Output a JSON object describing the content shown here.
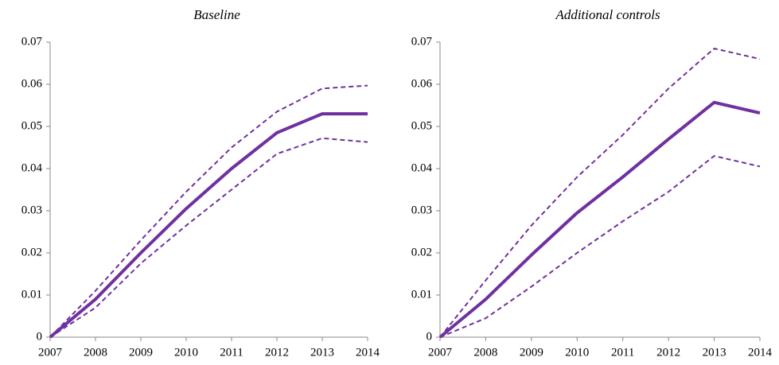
{
  "chart_data": [
    {
      "type": "line",
      "title": "Baseline",
      "x": [
        2007,
        2008,
        2009,
        2010,
        2011,
        2012,
        2013,
        2014
      ],
      "xlim": [
        2007,
        2014
      ],
      "xticks": [
        2007,
        2008,
        2009,
        2010,
        2011,
        2012,
        2013,
        2014
      ],
      "ylim": [
        0,
        0.07
      ],
      "yticks": [
        0,
        0.01,
        0.02,
        0.03,
        0.04,
        0.05,
        0.06,
        0.07
      ],
      "series": [
        {
          "color": "#7030a0",
          "dashed": false,
          "values": [
            0,
            0.009,
            0.02,
            0.0305,
            0.04,
            0.0485,
            0.053,
            0.053
          ]
        },
        {
          "color": "#7030a0",
          "dashed": true,
          "values": [
            0,
            0.011,
            0.023,
            0.0345,
            0.045,
            0.0535,
            0.059,
            0.0597
          ]
        },
        {
          "color": "#7030a0",
          "dashed": true,
          "values": [
            0,
            0.007,
            0.0175,
            0.0265,
            0.035,
            0.0435,
            0.0472,
            0.0463
          ]
        }
      ]
    },
    {
      "type": "line",
      "title": "Additional controls",
      "x": [
        2007,
        2008,
        2009,
        2010,
        2011,
        2012,
        2013,
        2014
      ],
      "xlim": [
        2007,
        2014
      ],
      "xticks": [
        2007,
        2008,
        2009,
        2010,
        2011,
        2012,
        2013,
        2014
      ],
      "ylim": [
        0,
        0.07
      ],
      "yticks": [
        0,
        0.01,
        0.02,
        0.03,
        0.04,
        0.05,
        0.06,
        0.07
      ],
      "series": [
        {
          "color": "#7030a0",
          "dashed": false,
          "values": [
            0,
            0.009,
            0.0195,
            0.0295,
            0.038,
            0.047,
            0.0557,
            0.0532
          ]
        },
        {
          "color": "#7030a0",
          "dashed": true,
          "values": [
            0,
            0.0135,
            0.0265,
            0.038,
            0.048,
            0.059,
            0.0685,
            0.066
          ]
        },
        {
          "color": "#7030a0",
          "dashed": true,
          "values": [
            0,
            0.0045,
            0.012,
            0.02,
            0.0275,
            0.0345,
            0.043,
            0.0405
          ]
        }
      ]
    }
  ]
}
